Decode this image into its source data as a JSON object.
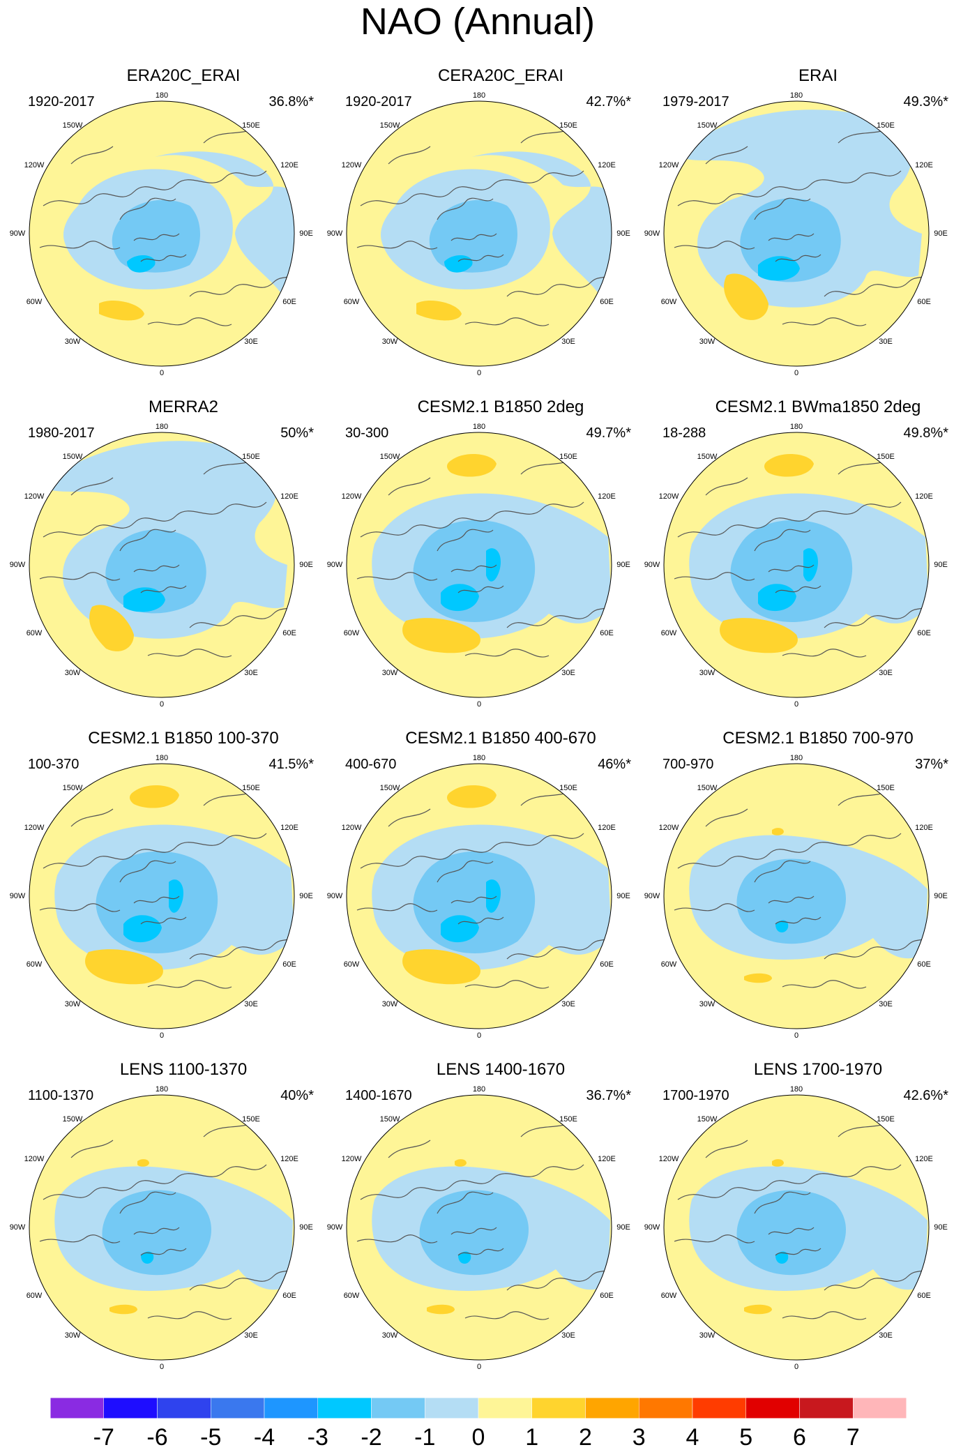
{
  "figure": {
    "title": "NAO (Annual)"
  },
  "panels": [
    {
      "title": "ERA20C_ERAI",
      "period": "1920-2017",
      "percent": "36.8%*",
      "variant": 0
    },
    {
      "title": "CERA20C_ERAI",
      "period": "1920-2017",
      "percent": "42.7%*",
      "variant": 0
    },
    {
      "title": "ERAI",
      "period": "1979-2017",
      "percent": "49.3%*",
      "variant": 1
    },
    {
      "title": "MERRA2",
      "period": "1980-2017",
      "percent": "50%*",
      "variant": 1
    },
    {
      "title": "CESM2.1 B1850 2deg",
      "period": "30-300",
      "percent": "49.7%*",
      "variant": 2
    },
    {
      "title": "CESM2.1 BWma1850 2deg",
      "period": "18-288",
      "percent": "49.8%*",
      "variant": 2
    },
    {
      "title": "CESM2.1 B1850 100-370",
      "period": "100-370",
      "percent": "41.5%*",
      "variant": 2
    },
    {
      "title": "CESM2.1 B1850 400-670",
      "period": "400-670",
      "percent": "46%*",
      "variant": 2
    },
    {
      "title": "CESM2.1 B1850 700-970",
      "period": "700-970",
      "percent": "37%*",
      "variant": 3
    },
    {
      "title": "LENS 1100-1370",
      "period": "1100-1370",
      "percent": "40%*",
      "variant": 3
    },
    {
      "title": "LENS 1400-1670",
      "period": "1400-1670",
      "percent": "36.7%*",
      "variant": 3
    },
    {
      "title": "LENS 1700-1970",
      "period": "1700-1970",
      "percent": "42.6%*",
      "variant": 3
    }
  ],
  "longitude_labels": [
    "180",
    "150E",
    "120E",
    "90E",
    "60E",
    "30E",
    "0",
    "30W",
    "60W",
    "90W",
    "120W",
    "150W"
  ],
  "colorbar": {
    "labels": [
      "-7",
      "-6",
      "-5",
      "-4",
      "-3",
      "-2",
      "-1",
      "0",
      "1",
      "2",
      "3",
      "4",
      "5",
      "6",
      "7"
    ],
    "colors": [
      "#8a2be2",
      "#1e0dff",
      "#2f43ee",
      "#3a78ee",
      "#1e96ff",
      "#00c8ff",
      "#74c9f4",
      "#b4ddf4",
      "#fef597",
      "#ffd42e",
      "#ffa500",
      "#ff7800",
      "#ff3c00",
      "#e10000",
      "#c8181e",
      "#ffb6b9"
    ]
  },
  "map_colors": {
    "background": "#fef597",
    "weak_negative": "#b4ddf4",
    "moderate_negative": "#74c9f4",
    "strong_negative": "#00c8ff",
    "positive": "#ffd42e",
    "coast": "#555555",
    "frame": "#000000"
  }
}
